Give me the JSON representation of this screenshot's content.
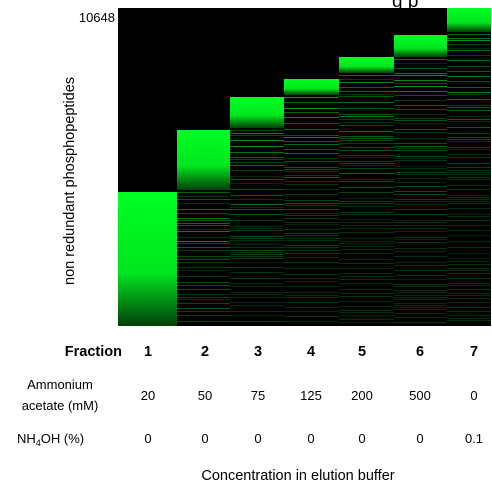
{
  "figure": {
    "title_fragment": "g p",
    "ylabel": "non redundant phosphopeptides",
    "y_top_value": "10648",
    "xlabel": "Concentration in elution buffer",
    "band_color": "#00ff22",
    "background_color": "#000000",
    "rows": {
      "fraction": {
        "label": "Fraction",
        "values": [
          "1",
          "2",
          "3",
          "4",
          "5",
          "6",
          "7"
        ]
      },
      "ammonium": {
        "label_line1": "Ammonium",
        "label_line2": "acetate (mM)",
        "values": [
          "20",
          "50",
          "75",
          "125",
          "200",
          "500",
          "0"
        ]
      },
      "nh4oh": {
        "label_main": "NH",
        "label_sub": "4",
        "label_rest": "OH (%)",
        "values": [
          "0",
          "0",
          "0",
          "0",
          "0",
          "0",
          "0.1"
        ]
      }
    }
  }
}
